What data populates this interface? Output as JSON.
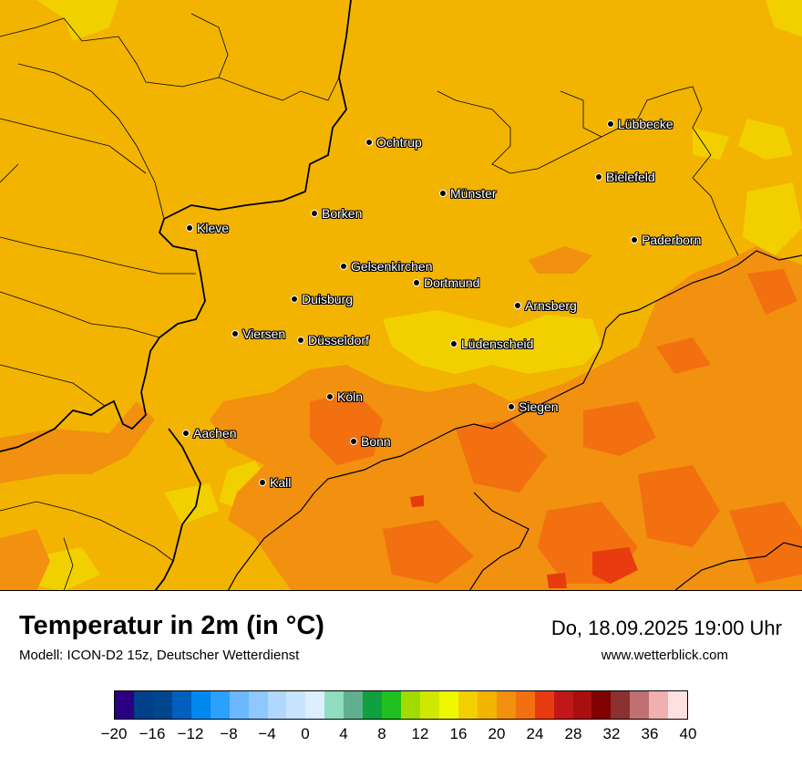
{
  "map": {
    "cities": [
      {
        "name": "Lübbecke"
      },
      {
        "name": "Ochtrup"
      },
      {
        "name": "Bielefeld"
      },
      {
        "name": "Münster"
      },
      {
        "name": "Borken"
      },
      {
        "name": "Kleve"
      },
      {
        "name": "Paderborn"
      },
      {
        "name": "Gelsenkirchen"
      },
      {
        "name": "Dortmund"
      },
      {
        "name": "Duisburg"
      },
      {
        "name": "Arnsberg"
      },
      {
        "name": "Viersen"
      },
      {
        "name": "Düsseldorf"
      },
      {
        "name": "Lüdenscheid"
      },
      {
        "name": "Köln"
      },
      {
        "name": "Siegen"
      },
      {
        "name": "Aachen"
      },
      {
        "name": "Bonn"
      },
      {
        "name": "Kall"
      }
    ]
  },
  "footer": {
    "title": "Temperatur in 2m (in °C)",
    "subtitle": "Modell: ICON-D2 15z, Deutscher Wetterdienst",
    "datetime": "Do, 18.09.2025 19:00 Uhr",
    "website": "www.wetterblick.com"
  },
  "legend": {
    "colors": [
      "#2b0080",
      "#003f8a",
      "#00468f",
      "#0060bf",
      "#0088f0",
      "#2aa0ff",
      "#6bb8ff",
      "#8ec8ff",
      "#b0d8ff",
      "#c8e4ff",
      "#dceeff",
      "#90dcc0",
      "#60b090",
      "#10a040",
      "#20c020",
      "#a0dc00",
      "#d0e800",
      "#f0f800",
      "#f2d000",
      "#f2b400",
      "#f29010",
      "#f27010",
      "#e83c10",
      "#c01818",
      "#a81010",
      "#800000",
      "#8c3030",
      "#c07070",
      "#f0b0b0",
      "#ffe0e0"
    ],
    "ticks": [
      "−20",
      "−16",
      "−12",
      "−8",
      "−4",
      "0",
      "4",
      "8",
      "12",
      "16",
      "20",
      "24",
      "28",
      "32",
      "36",
      "40"
    ]
  }
}
